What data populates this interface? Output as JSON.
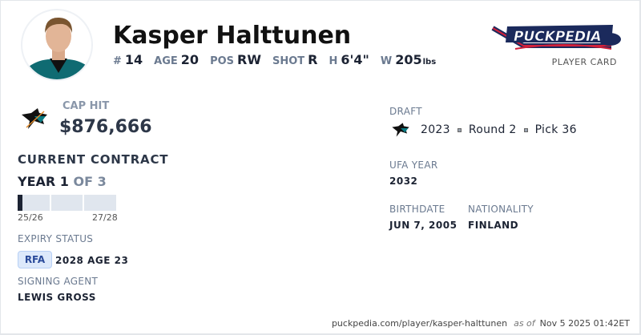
{
  "player": {
    "name": "Kasper Halttunen",
    "number_label": "#",
    "number": "14",
    "age_label": "AGE",
    "age": "20",
    "pos_label": "POS",
    "pos": "RW",
    "shot_label": "SHOT",
    "shot": "R",
    "height_label": "H",
    "height": "6'4\"",
    "weight_label": "W",
    "weight": "205",
    "weight_unit": "lbs"
  },
  "brand": {
    "logo_text": "PuckPedia",
    "subtitle": "PLAYER CARD",
    "colors": {
      "navy": "#1b2a5c",
      "red": "#d2203a"
    }
  },
  "team": {
    "icon": "sharks-logo",
    "color": "#006d75"
  },
  "contract": {
    "cap_hit_label": "CAP HIT",
    "cap_hit": "$876,666",
    "current_label": "CURRENT CONTRACT",
    "year_label": "YEAR 1",
    "of_label": "OF 3",
    "progress_fraction": 0.05,
    "start_season": "25/26",
    "end_season": "27/28",
    "expiry_label": "EXPIRY STATUS",
    "expiry_badge": "RFA",
    "expiry_detail": "2028 AGE 23",
    "agent_label": "SIGNING AGENT",
    "agent": "LEWIS GROSS"
  },
  "draft": {
    "label": "DRAFT",
    "year": "2023",
    "round": "Round 2",
    "pick": "Pick 36"
  },
  "ufa": {
    "label": "UFA YEAR",
    "value": "2032"
  },
  "bio": {
    "birth_label": "BIRTHDATE",
    "birth": "JUN 7, 2005",
    "nat_label": "NATIONALITY",
    "nat": "FINLAND"
  },
  "footer": {
    "url": "puckpedia.com/player/kasper-halttunen",
    "as_of": "as of",
    "timestamp": "Nov 5 2025 01:42ET"
  }
}
